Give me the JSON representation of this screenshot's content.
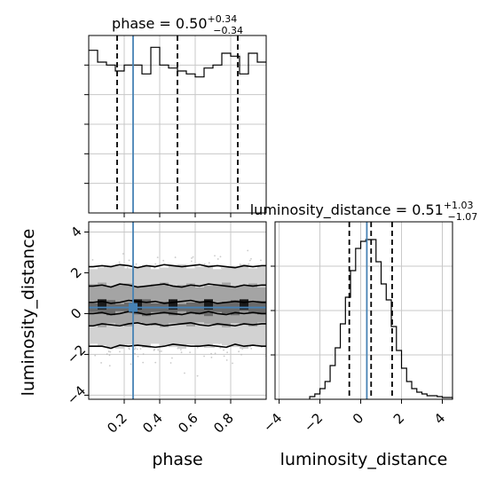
{
  "chart_data": {
    "type": "corner",
    "parameters": [
      "phase",
      "luminosity_distance"
    ],
    "truths": {
      "phase": 0.25,
      "luminosity_distance": 0.3
    },
    "colors": {
      "truth": "#4682b4",
      "hist": "#000000",
      "grid": "#c8c8c8",
      "scatter": "#b4b4b4"
    },
    "titles": {
      "phase": {
        "name": "phase",
        "value": "0.50",
        "plus": "+0.34",
        "minus": "−0.34"
      },
      "luminosity_distance": {
        "name": "luminosity_distance",
        "value": "0.51",
        "plus": "+1.03",
        "minus": "−1.07"
      }
    },
    "phase_hist": {
      "xlim": [
        0.0,
        1.0
      ],
      "bin_edges": [
        0,
        0.05,
        0.1,
        0.15,
        0.2,
        0.25,
        0.3,
        0.35,
        0.4,
        0.45,
        0.5,
        0.55,
        0.6,
        0.65,
        0.7,
        0.75,
        0.8,
        0.85,
        0.9,
        0.95,
        1.0
      ],
      "counts": [
        205,
        201,
        200,
        198,
        200,
        200,
        197,
        206,
        200,
        199,
        198,
        197,
        196,
        199,
        200,
        204,
        203,
        197,
        204,
        201
      ],
      "ylim": [
        150,
        210
      ],
      "quantiles": [
        0.16,
        0.5,
        0.84
      ],
      "ylabel": ""
    },
    "distance_hist": {
      "xlim": [
        -4.2,
        4.5
      ],
      "bin_edges": [
        -2.5,
        -2.25,
        -2.0,
        -1.75,
        -1.5,
        -1.25,
        -1.0,
        -0.75,
        -0.5,
        -0.25,
        0.0,
        0.25,
        0.5,
        0.75,
        1.0,
        1.25,
        1.5,
        1.75,
        2.0,
        2.25,
        2.5,
        2.75,
        3.0,
        3.25,
        3.5,
        3.75,
        4.0,
        4.25,
        4.5
      ],
      "counts": [
        3,
        6,
        12,
        20,
        38,
        58,
        85,
        115,
        145,
        170,
        178,
        180,
        180,
        155,
        130,
        112,
        82,
        55,
        35,
        20,
        12,
        8,
        6,
        4,
        4,
        3,
        2,
        2
      ],
      "ymax": 200,
      "quantiles": [
        -0.56,
        0.51,
        1.54
      ],
      "ylabel": ""
    },
    "joint": {
      "xlim": [
        0.0,
        1.0
      ],
      "ylim": [
        -4.2,
        4.5
      ],
      "density_columns": 20,
      "contour_levels_y": [
        [
          -1.6,
          -1.6,
          -1.7,
          -1.55,
          -1.6,
          -1.55,
          -1.6,
          -1.65,
          -1.6,
          -1.5,
          -1.55,
          -1.6,
          -1.6,
          -1.55,
          -1.6,
          -1.65,
          -1.5,
          -1.6,
          -1.55,
          -1.6
        ],
        [
          -0.6,
          -0.5,
          -0.55,
          -0.6,
          -0.5,
          -0.45,
          -0.55,
          -0.5,
          -0.6,
          -0.55,
          -0.5,
          -0.45,
          -0.55,
          -0.6,
          -0.5,
          -0.55,
          -0.6,
          -0.5,
          -0.55,
          -0.5
        ],
        [
          0.0,
          0.05,
          -0.05,
          0.0,
          0.1,
          0.05,
          -0.05,
          0.0,
          0.05,
          0.0,
          -0.05,
          0.05,
          0.0,
          0.1,
          0.0,
          -0.05,
          0.05,
          0.0,
          0.05,
          0.0
        ],
        [
          0.55,
          0.6,
          0.5,
          0.55,
          0.65,
          0.6,
          0.55,
          0.6,
          0.5,
          0.55,
          0.6,
          0.65,
          0.55,
          0.6,
          0.5,
          0.55,
          0.6,
          0.55,
          0.6,
          0.55
        ],
        [
          1.35,
          1.4,
          1.3,
          1.45,
          1.4,
          1.3,
          1.35,
          1.4,
          1.45,
          1.35,
          1.3,
          1.4,
          1.35,
          1.45,
          1.4,
          1.35,
          1.3,
          1.4,
          1.35,
          1.4
        ],
        [
          2.3,
          2.35,
          2.3,
          2.4,
          2.35,
          2.25,
          2.35,
          2.3,
          2.4,
          2.35,
          2.3,
          2.35,
          2.4,
          2.3,
          2.35,
          2.3,
          2.25,
          2.35,
          2.3,
          2.35
        ]
      ]
    },
    "axes": {
      "phase_ticks": [
        0.2,
        0.4,
        0.6,
        0.8
      ],
      "phase_tick_labels": [
        "0.2",
        "0.4",
        "0.6",
        "0.8"
      ],
      "distance_ticks": [
        -4,
        -2,
        0,
        2,
        4
      ],
      "distance_tick_labels": [
        "−4",
        "−2",
        "0",
        "2",
        "4"
      ],
      "xlabel_phase": "phase",
      "xlabel_distance": "luminosity_distance",
      "ylabel_distance": "luminosity_distance"
    }
  }
}
